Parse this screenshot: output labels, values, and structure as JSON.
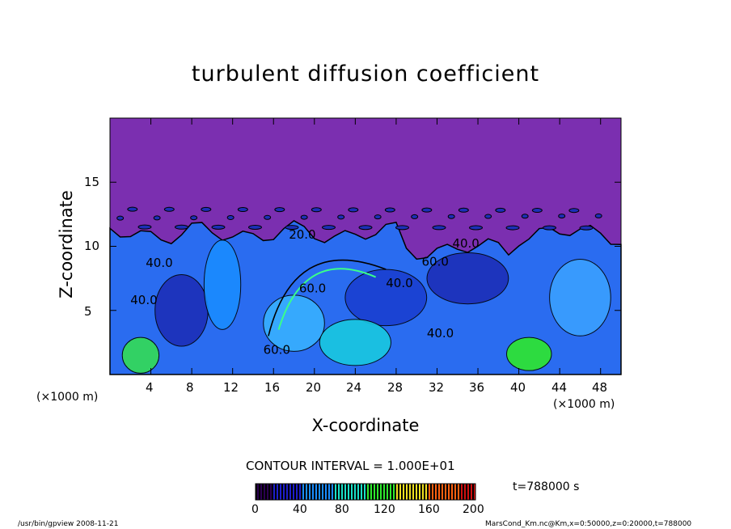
{
  "chart_data": {
    "type": "heatmap",
    "title": "turbulent diffusion coefficient",
    "xlabel": "X-coordinate",
    "ylabel": "Z-coordinate",
    "x_unit_left": "(×1000 m)",
    "x_unit_right": "(×1000 m)",
    "xlim": [
      0,
      50
    ],
    "ylim": [
      0,
      20
    ],
    "x_ticks": [
      "4",
      "8",
      "12",
      "16",
      "20",
      "24",
      "28",
      "32",
      "36",
      "40",
      "44",
      "48"
    ],
    "y_ticks": [
      "5",
      "10",
      "15"
    ],
    "contour_labels": [
      "20.0",
      "40.0",
      "40.0",
      "40.0",
      "40.0",
      "60.0",
      "60.0",
      "60.0",
      "40.0"
    ],
    "contour_interval_text": "CONTOUR INTERVAL = 1.000E+01",
    "colorbar": {
      "ticks": [
        "0",
        "40",
        "80",
        "120",
        "160",
        "200"
      ],
      "min": 0,
      "max": 200,
      "colors": [
        "#2a0050",
        "#1e1ecc",
        "#1a8cff",
        "#19e0c8",
        "#2ee82e",
        "#f0e020",
        "#ff6010",
        "#d01010"
      ]
    },
    "time_label": "t=788000 s",
    "background_color": "#7b2fb0",
    "turbulent_layer_top_km": 11
  },
  "footer": {
    "left": "/usr/bin/gpview   2008-11-21",
    "right": "MarsCond_Km.nc@Km,x=0:50000,z=0:20000,t=788000"
  }
}
